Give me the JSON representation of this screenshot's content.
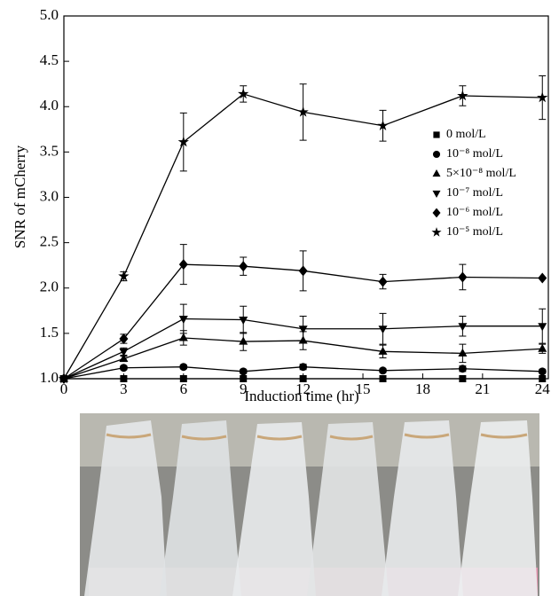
{
  "chart_data": {
    "type": "line",
    "x_label": "Induction time (hr)",
    "y_label": "SNR of mCherry",
    "x": [
      0,
      3,
      6,
      9,
      12,
      16,
      20,
      24
    ],
    "xlim": [
      0,
      24.3
    ],
    "xticks": [
      0,
      3,
      6,
      9,
      12,
      15,
      18,
      21,
      24
    ],
    "ylim": [
      1,
      5
    ],
    "yticks": [
      {
        "value": 1,
        "label": "1.0"
      },
      1.5,
      {
        "value": 2,
        "label": "2.0"
      },
      2.5,
      {
        "value": 3,
        "label": "3.0"
      },
      3.5,
      {
        "value": 4,
        "label": "4.0"
      },
      4.5,
      {
        "value": 5,
        "label": "5.0"
      }
    ],
    "series": [
      {
        "name": "0 mol/L",
        "marker": "square",
        "color": "#000000",
        "values": [
          1,
          1,
          1,
          1,
          1,
          1,
          1,
          1
        ],
        "errors": [
          0,
          0,
          0,
          0,
          0,
          0,
          0,
          0
        ]
      },
      {
        "name": "10⁻⁸ mol/L",
        "marker": "circle",
        "color": "#000000",
        "values": [
          1,
          1.12,
          1.13,
          1.08,
          1.13,
          1.09,
          1.11,
          1.08
        ],
        "errors": [
          0,
          0.02,
          0.02,
          0.02,
          0.03,
          0.02,
          0.03,
          0.02
        ]
      },
      {
        "name": "5×10⁻⁸ mol/L",
        "marker": "triangle-up",
        "color": "#000000",
        "values": [
          1,
          1.22,
          1.45,
          1.41,
          1.42,
          1.3,
          1.28,
          1.33
        ],
        "errors": [
          0,
          0.03,
          0.08,
          0.1,
          0.1,
          0.07,
          0.1,
          0.05
        ]
      },
      {
        "name": "10⁻⁷ mol/L",
        "marker": "triangle-down",
        "color": "#000000",
        "values": [
          1,
          1.3,
          1.66,
          1.65,
          1.55,
          1.55,
          1.58,
          1.58
        ],
        "errors": [
          0,
          0.04,
          0.16,
          0.15,
          0.14,
          0.17,
          0.11,
          0.19
        ]
      },
      {
        "name": "10⁻⁶ mol/L",
        "marker": "diamond",
        "color": "#000000",
        "values": [
          1,
          1.44,
          2.26,
          2.24,
          2.19,
          2.07,
          2.12,
          2.11
        ],
        "errors": [
          0,
          0.05,
          0.22,
          0.1,
          0.22,
          0.08,
          0.14,
          0
        ]
      },
      {
        "name": "10⁻⁵ mol/L",
        "marker": "star",
        "color": "#000000",
        "values": [
          1,
          2.13,
          3.61,
          4.14,
          3.94,
          3.79,
          4.12,
          4.1
        ],
        "errors": [
          0,
          0.05,
          0.32,
          0.09,
          0.31,
          0.17,
          0.11,
          0.24
        ]
      }
    ]
  }
}
